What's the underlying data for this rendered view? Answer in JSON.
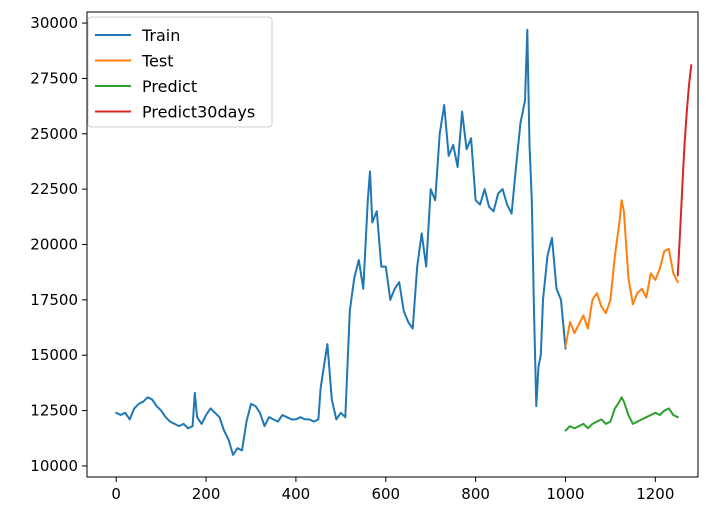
{
  "chart_data": {
    "type": "line",
    "title": "",
    "xlabel": "",
    "ylabel": "",
    "xlim": [
      -65,
      1295
    ],
    "ylim": [
      9500,
      30500
    ],
    "xticks": [
      0,
      200,
      400,
      600,
      800,
      1000,
      1200
    ],
    "yticks": [
      10000,
      12500,
      15000,
      17500,
      20000,
      22500,
      25000,
      27500,
      30000
    ],
    "grid": false,
    "legend_position": "upper left",
    "series": [
      {
        "name": "Train",
        "color": "#1f77b4",
        "x": [
          0,
          10,
          20,
          30,
          40,
          50,
          60,
          70,
          80,
          90,
          100,
          110,
          120,
          130,
          140,
          150,
          160,
          170,
          175,
          180,
          190,
          200,
          210,
          220,
          230,
          240,
          250,
          260,
          270,
          280,
          290,
          300,
          310,
          320,
          330,
          340,
          350,
          360,
          370,
          380,
          390,
          400,
          410,
          420,
          430,
          440,
          450,
          455,
          460,
          470,
          480,
          490,
          500,
          510,
          520,
          530,
          540,
          550,
          560,
          565,
          570,
          580,
          590,
          600,
          610,
          620,
          630,
          640,
          650,
          660,
          670,
          680,
          690,
          700,
          710,
          720,
          730,
          740,
          750,
          760,
          770,
          780,
          790,
          800,
          810,
          820,
          830,
          840,
          850,
          860,
          870,
          880,
          890,
          900,
          905,
          910,
          915,
          920,
          925,
          930,
          935,
          940,
          945,
          950,
          960,
          970,
          980,
          990,
          1000
        ],
        "values": [
          12400,
          12300,
          12400,
          12100,
          12600,
          12800,
          12900,
          13100,
          13000,
          12700,
          12500,
          12200,
          12000,
          11900,
          11800,
          11900,
          11700,
          11800,
          13300,
          12200,
          11900,
          12300,
          12600,
          12400,
          12200,
          11600,
          11200,
          10500,
          10800,
          10700,
          12000,
          12800,
          12700,
          12400,
          11800,
          12200,
          12100,
          12000,
          12300,
          12200,
          12100,
          12100,
          12200,
          12100,
          12100,
          12000,
          12100,
          13500,
          14200,
          15500,
          13000,
          12100,
          12400,
          12200,
          17000,
          18500,
          19300,
          18000,
          22000,
          23300,
          21000,
          21500,
          19000,
          19000,
          17500,
          18000,
          18300,
          17000,
          16500,
          16200,
          19000,
          20500,
          19000,
          22500,
          22000,
          25000,
          26300,
          24000,
          24500,
          23500,
          26000,
          24300,
          24800,
          22000,
          21800,
          22500,
          21700,
          21500,
          22300,
          22500,
          21800,
          21400,
          23500,
          25500,
          26000,
          26500,
          29700,
          24500,
          22000,
          17000,
          12700,
          14500,
          15000,
          17500,
          19500,
          20300,
          18000,
          17500,
          15300
        ]
      },
      {
        "name": "Test",
        "color": "#ff7f0e",
        "x": [
          1000,
          1010,
          1020,
          1030,
          1040,
          1050,
          1060,
          1070,
          1080,
          1090,
          1100,
          1110,
          1120,
          1125,
          1130,
          1140,
          1150,
          1160,
          1170,
          1180,
          1190,
          1200,
          1210,
          1220,
          1230,
          1240,
          1250
        ],
        "values": [
          15400,
          16500,
          16000,
          16400,
          16800,
          16200,
          17500,
          17800,
          17200,
          16900,
          17500,
          19500,
          21000,
          22000,
          21500,
          18500,
          17300,
          17800,
          18000,
          17600,
          18700,
          18400,
          18900,
          19700,
          19800,
          18700,
          18300
        ]
      },
      {
        "name": "Predict",
        "color": "#2ca02c",
        "x": [
          1000,
          1010,
          1020,
          1030,
          1040,
          1050,
          1060,
          1070,
          1080,
          1090,
          1100,
          1110,
          1120,
          1125,
          1130,
          1140,
          1150,
          1160,
          1170,
          1180,
          1190,
          1200,
          1210,
          1220,
          1230,
          1240,
          1250
        ],
        "values": [
          11600,
          11800,
          11700,
          11800,
          11900,
          11700,
          11900,
          12000,
          12100,
          11900,
          12000,
          12600,
          12900,
          13100,
          12900,
          12300,
          11900,
          12000,
          12100,
          12200,
          12300,
          12400,
          12300,
          12500,
          12600,
          12300,
          12200
        ]
      },
      {
        "name": "Predict30days",
        "color": "#d62728",
        "x": [
          1250,
          1255,
          1260,
          1265,
          1270,
          1275,
          1280
        ],
        "values": [
          18600,
          20500,
          22600,
          24500,
          26000,
          27200,
          28100
        ]
      }
    ]
  }
}
